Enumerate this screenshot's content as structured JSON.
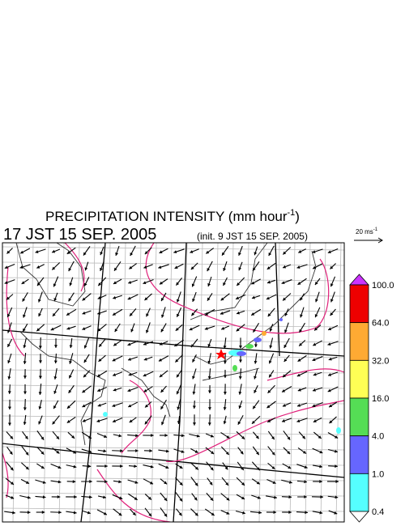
{
  "title": {
    "text": "PRECIPITATION INTENSITY (mm hour",
    "sup": "-1",
    "close": ")"
  },
  "valid_time": "17 JST 15 SEP. 2005",
  "init_time": "(init. 9 JST 15 SEP. 2005)",
  "wind_scale": {
    "text": "20 ms",
    "sup": "-1"
  },
  "colorbar": {
    "labels": [
      "100.0",
      "64.0",
      "32.0",
      "16.0",
      "4.0",
      "1.0",
      "0.4"
    ],
    "colors": [
      "#ee0000",
      "#ffaa33",
      "#ffff55",
      "#55dd55",
      "#6666ff",
      "#55ffff"
    ],
    "over_color": "#cc33ff",
    "under_color": "#ffffff"
  }
}
